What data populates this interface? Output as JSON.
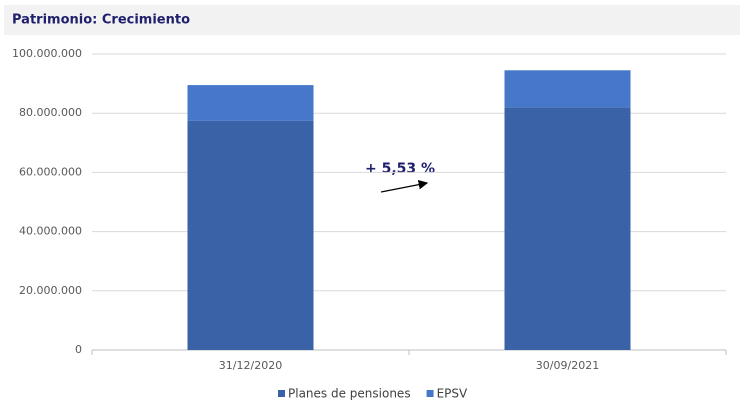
{
  "chart_data": {
    "type": "stacked_bar",
    "title": "Patrimonio: Crecimiento",
    "categories": [
      "31/12/2020",
      "30/09/2021"
    ],
    "series": [
      {
        "name": "Planes de pensiones",
        "color": "#3a62a7",
        "values": [
          77400000,
          82000000
        ]
      },
      {
        "name": "EPSV",
        "color": "#4677c8",
        "values": [
          12100000,
          12500000
        ]
      }
    ],
    "ylim": [
      0,
      100000000
    ],
    "yticks": [
      0,
      {
        "value": 20000000,
        "label": "20.000.000"
      },
      {
        "value": 40000000,
        "label": "40.000.000"
      },
      {
        "value": 60000000,
        "label": "60.000.000"
      },
      {
        "value": 80000000,
        "label": "80.000.000"
      },
      {
        "value": 100000000,
        "label": "100.000.000"
      }
    ],
    "grid": true,
    "legend": "bottom",
    "annotation": "+ 5,53 %"
  }
}
